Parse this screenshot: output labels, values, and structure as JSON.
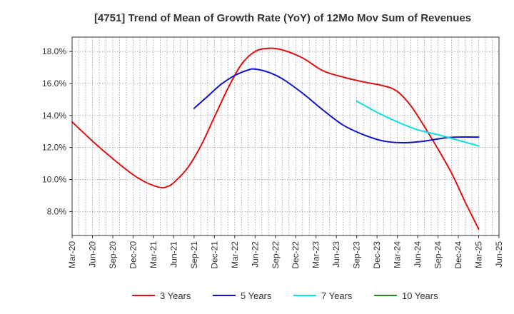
{
  "chart_data": {
    "type": "line",
    "title": "[4751]  Trend of Mean of Growth Rate (YoY) of 12Mo Mov Sum of Revenues",
    "xlabel": "",
    "ylabel": "",
    "x_ticks": [
      "Mar-20",
      "Jun-20",
      "Sep-20",
      "Dec-20",
      "Mar-21",
      "Jun-21",
      "Sep-21",
      "Dec-21",
      "Mar-22",
      "Jun-22",
      "Sep-22",
      "Dec-22",
      "Mar-23",
      "Jun-23",
      "Sep-23",
      "Dec-23",
      "Mar-24",
      "Jun-24",
      "Sep-24",
      "Dec-24",
      "Mar-25",
      "Jun-25"
    ],
    "y_ticks": [
      "8.0%",
      "10.0%",
      "12.0%",
      "14.0%",
      "16.0%",
      "18.0%"
    ],
    "y_tick_values": [
      8,
      10,
      12,
      14,
      16,
      18
    ],
    "ylim": [
      6.5,
      18.9
    ],
    "x_range_months": [
      0,
      63
    ],
    "grid": true,
    "legend_position": "bottom",
    "series": [
      {
        "name": "3 Years",
        "color": "#dd1111",
        "points": [
          [
            0,
            13.6
          ],
          [
            3,
            12.4
          ],
          [
            6,
            11.3
          ],
          [
            9,
            10.3
          ],
          [
            11,
            9.8
          ],
          [
            13,
            9.5
          ],
          [
            14,
            9.55
          ],
          [
            15,
            9.8
          ],
          [
            17,
            10.7
          ],
          [
            19,
            12.1
          ],
          [
            21,
            13.9
          ],
          [
            23,
            15.7
          ],
          [
            25,
            17.2
          ],
          [
            27,
            18.0
          ],
          [
            29,
            18.2
          ],
          [
            31,
            18.1
          ],
          [
            34,
            17.6
          ],
          [
            37,
            16.8
          ],
          [
            40,
            16.4
          ],
          [
            43,
            16.1
          ],
          [
            46,
            15.85
          ],
          [
            48,
            15.5
          ],
          [
            50,
            14.6
          ],
          [
            52,
            13.3
          ],
          [
            54,
            11.9
          ],
          [
            56,
            10.4
          ],
          [
            58,
            8.6
          ],
          [
            60,
            6.9
          ]
        ]
      },
      {
        "name": "5 Years",
        "color": "#1111cc",
        "points": [
          [
            18,
            14.45
          ],
          [
            20,
            15.2
          ],
          [
            22,
            15.95
          ],
          [
            24,
            16.5
          ],
          [
            26,
            16.85
          ],
          [
            27,
            16.9
          ],
          [
            29,
            16.7
          ],
          [
            31,
            16.3
          ],
          [
            34,
            15.4
          ],
          [
            37,
            14.35
          ],
          [
            40,
            13.4
          ],
          [
            43,
            12.8
          ],
          [
            46,
            12.4
          ],
          [
            49,
            12.3
          ],
          [
            52,
            12.4
          ],
          [
            55,
            12.6
          ],
          [
            57,
            12.65
          ],
          [
            60,
            12.65
          ]
        ]
      },
      {
        "name": "7 Years",
        "color": "#11dddd",
        "points": [
          [
            42,
            14.9
          ],
          [
            45,
            14.2
          ],
          [
            48,
            13.6
          ],
          [
            51,
            13.1
          ],
          [
            54,
            12.8
          ],
          [
            57,
            12.45
          ],
          [
            60,
            12.1
          ]
        ]
      },
      {
        "name": "10 Years",
        "color": "#228822",
        "points": []
      }
    ]
  }
}
